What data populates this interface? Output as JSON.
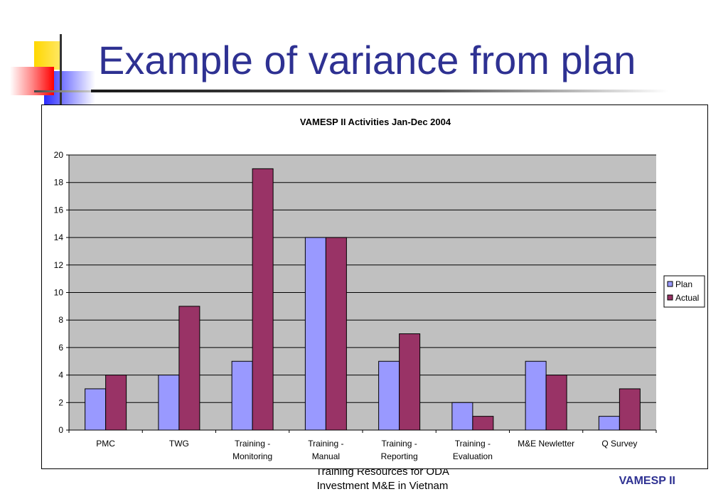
{
  "slide": {
    "title": "Example of variance from plan",
    "footer_line1": "Training Resources for ODA",
    "footer_line2": "Investment M&E  in Vietnam",
    "footer_brand": "VAMESP II"
  },
  "colors": {
    "title": "#2e3192",
    "plot_background": "#c0c0c0",
    "plan": "#9999ff",
    "actual": "#993366"
  },
  "chart_data": {
    "type": "bar",
    "title": "VAMESP II Activities Jan-Dec 2004",
    "categories": [
      [
        "PMC"
      ],
      [
        "TWG"
      ],
      [
        "Training -",
        "Monitoring"
      ],
      [
        "Training -",
        "Manual"
      ],
      [
        "Training -",
        "Reporting"
      ],
      [
        "Training -",
        "Evaluation"
      ],
      [
        "M&E Newletter"
      ],
      [
        "Q Survey"
      ]
    ],
    "series": [
      {
        "name": "Plan",
        "color": "#9999ff",
        "values": [
          3,
          4,
          5,
          14,
          5,
          2,
          5,
          1
        ]
      },
      {
        "name": "Actual",
        "color": "#993366",
        "values": [
          4,
          9,
          19,
          14,
          7,
          1,
          4,
          3
        ]
      }
    ],
    "ylim": [
      0,
      20
    ],
    "yticks": [
      0,
      2,
      4,
      6,
      8,
      10,
      12,
      14,
      16,
      18,
      20
    ],
    "grid": true,
    "legend": "right"
  }
}
